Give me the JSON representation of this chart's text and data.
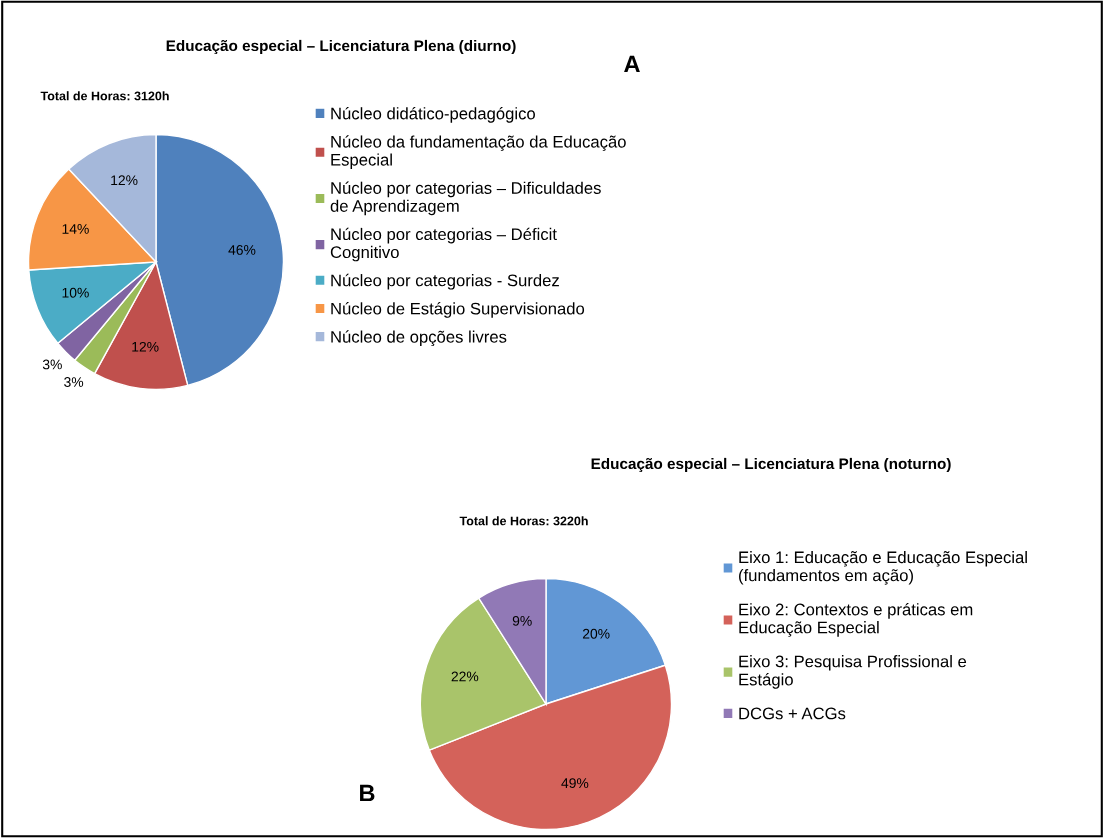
{
  "chart_data": [
    {
      "type": "pie",
      "title": "Educação especial – Licenciatura Plena (diurno)",
      "categories": [
        "Núcleo didático-pedagógico",
        "Núcleo da fundamentação da Educação Especial",
        "Núcleo por categorias – Dificuldades de Aprendizagem",
        "Núcleo por categorias – Déficit Cognitivo",
        "Núcleo por categorias - Surdez",
        "Núcleo de Estágio Supervisionado",
        "Núcleo de opções livres"
      ],
      "values": [
        46,
        12,
        3,
        3,
        10,
        14,
        12
      ],
      "colors": [
        "#4f81bd",
        "#c0504d",
        "#9bbb59",
        "#8064a2",
        "#4bacc6",
        "#f79646",
        "#a5b8da"
      ],
      "value_labels": [
        "46%",
        "12%",
        "3%",
        "3%",
        "10%",
        "14%",
        "12%"
      ],
      "legend": "right",
      "annotations": [
        "Total de Horas: 3120h",
        "A"
      ]
    },
    {
      "type": "pie",
      "title": "Educação especial – Licenciatura Plena (noturno)",
      "categories": [
        "Eixo 1: Educação e Educação Especial (fundamentos em ação)",
        "Eixo 2: Contextos e práticas em Educação Especial",
        "Eixo 3: Pesquisa Profissional e Estágio",
        "DCGs + ACGs"
      ],
      "values": [
        20,
        49,
        22,
        9
      ],
      "colors": [
        "#6197d5",
        "#d4625a",
        "#a9c46a",
        "#9179b6"
      ],
      "value_labels": [
        "20%",
        "49%",
        "22%",
        "9%"
      ],
      "legend": "right",
      "annotations": [
        "Total de Horas: 3220h",
        "B"
      ]
    }
  ]
}
